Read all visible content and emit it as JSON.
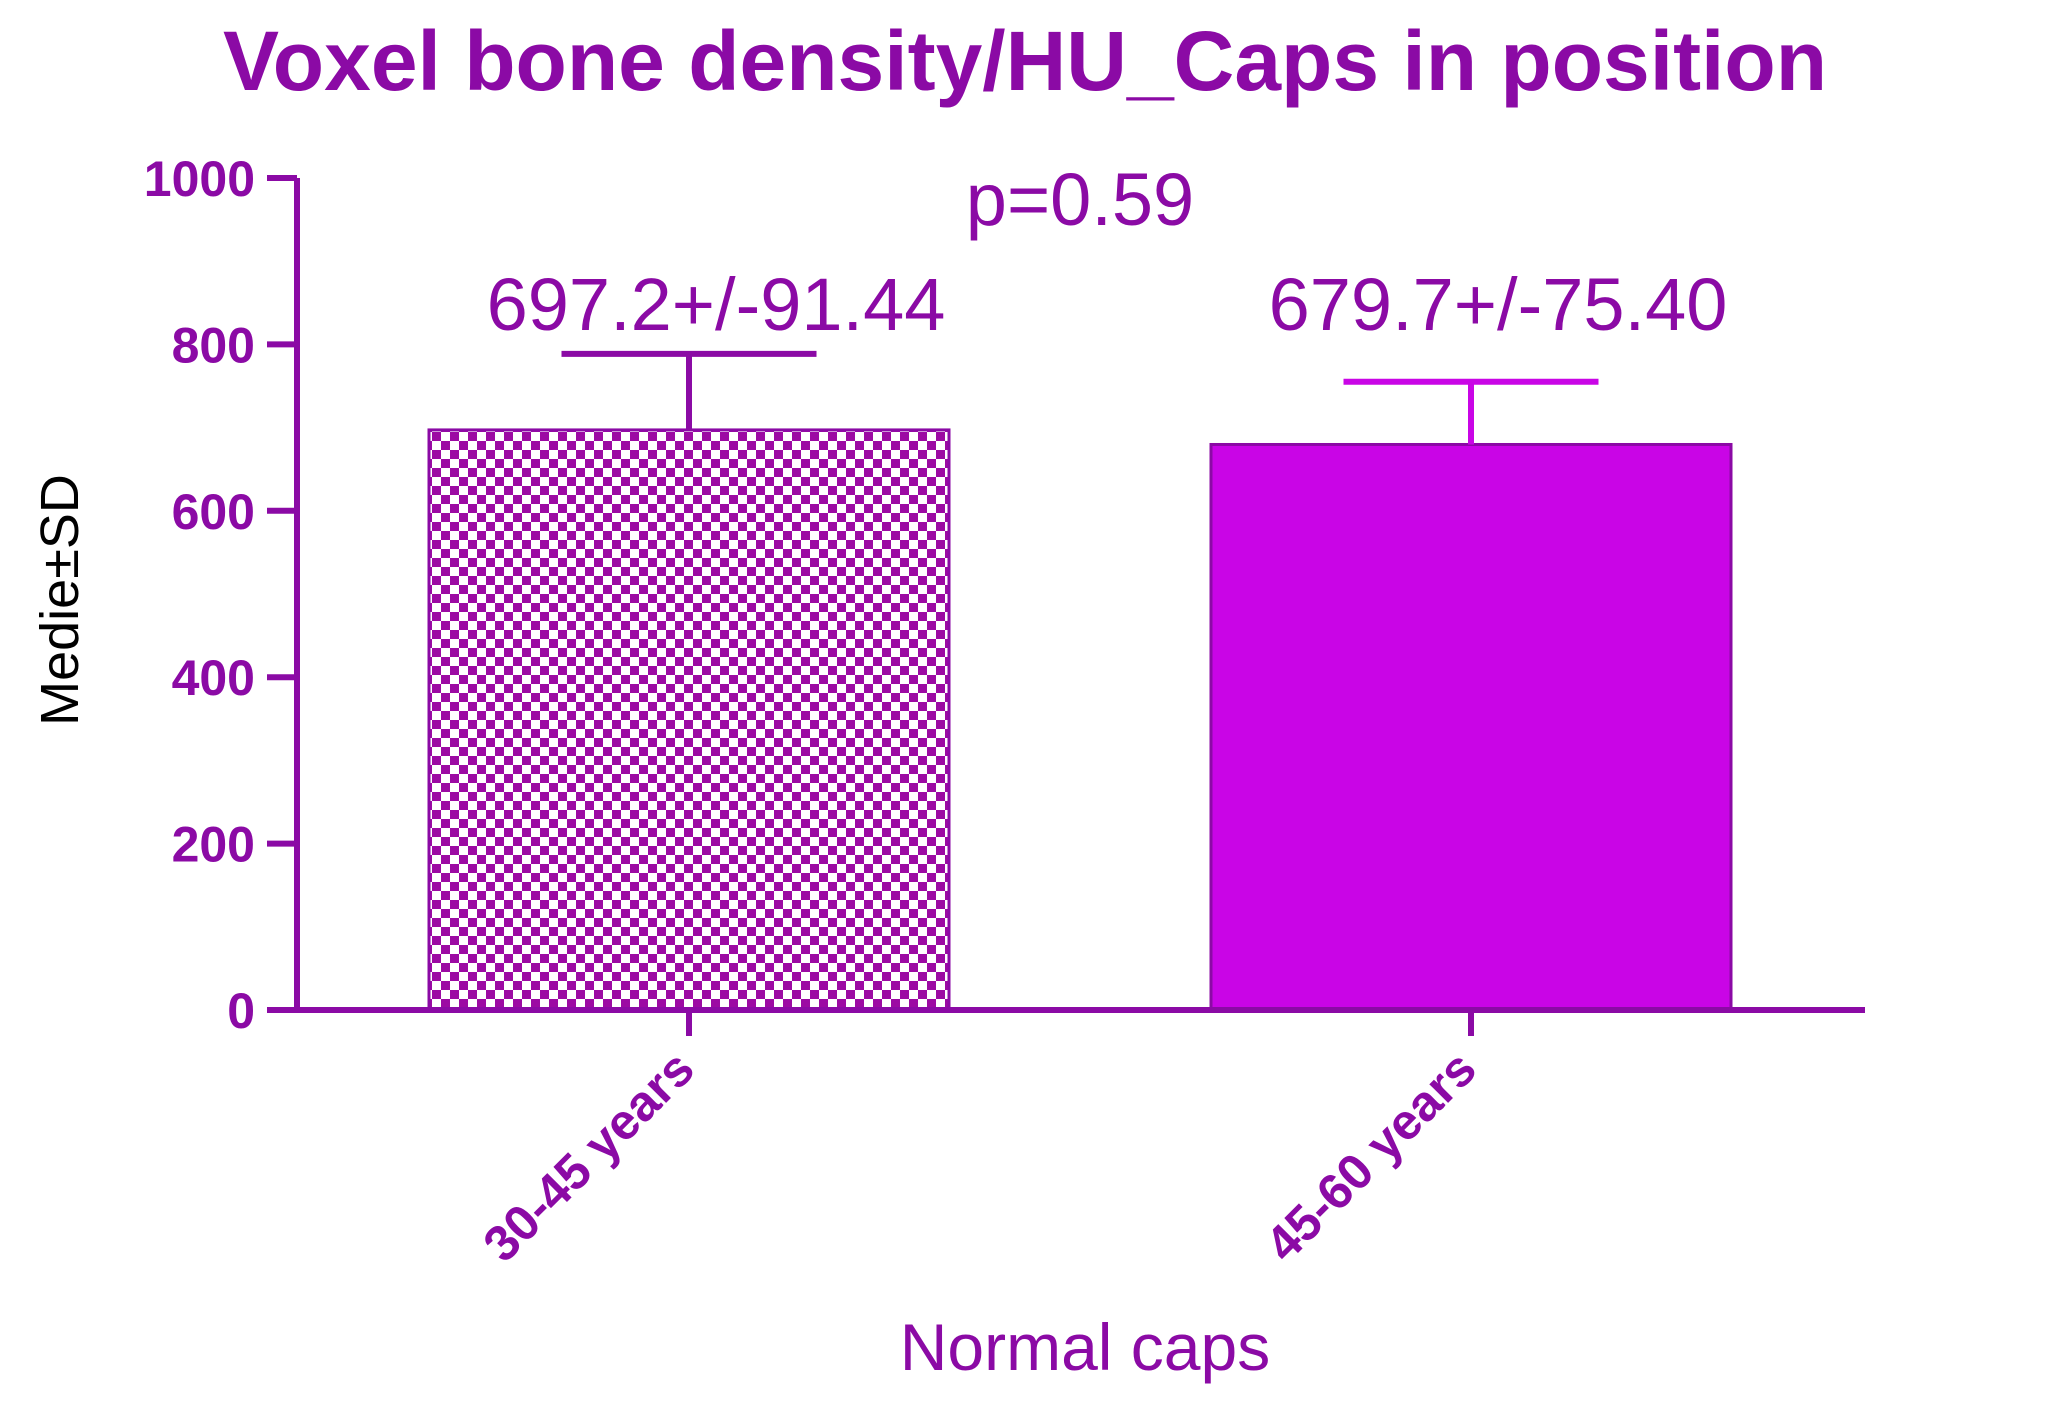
{
  "chart_data": {
    "type": "bar",
    "title": "Voxel bone density/HU_Caps in position",
    "xlabel": "Normal caps",
    "ylabel": "Medie±SD",
    "categories": [
      "30-45 years",
      "45-60 years"
    ],
    "values": [
      697.2,
      679.7
    ],
    "errors": [
      91.44,
      75.4
    ],
    "bar_labels": [
      "697.2+/-91.44",
      "679.7+/-75.40"
    ],
    "bar_styles": [
      "checkered",
      "solid"
    ],
    "annotation": "p=0.59",
    "ylim": [
      0,
      1000
    ],
    "yticks": [
      0,
      200,
      400,
      600,
      800,
      1000
    ],
    "grid": false,
    "legend": "none",
    "colors": {
      "axis": "#8b0aa5",
      "text": "#8b0aa5",
      "bar_solid": "#c905e6",
      "bar_checker_dark": "#9c0aa3",
      "bar_checker_light": "#ffffff",
      "error_bar_1": "#8b0aa5",
      "error_bar_2": "#c905e6",
      "ylabel": "#000000"
    }
  }
}
